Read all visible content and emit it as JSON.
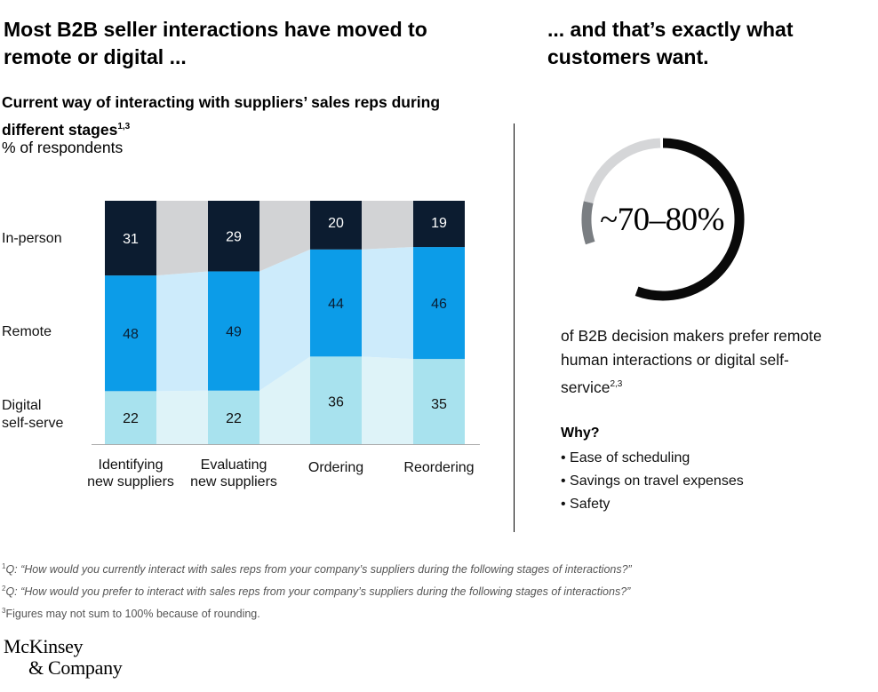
{
  "headline_left": "Most B2B seller interactions have moved to remote or digital ...",
  "headline_right": "... and that’s exactly what customers want.",
  "chart_title": "Current way of interacting with suppliers’ sales reps during different stages",
  "chart_title_footnote": "1,3",
  "chart_unit": "% of respondents",
  "row_labels": {
    "in_person": "In-person",
    "remote": "Remote",
    "digital_line1": "Digital",
    "digital_line2": "self-serve"
  },
  "category_labels": [
    {
      "line1": "Identifying",
      "line2": "new suppliers"
    },
    {
      "line1": "Evaluating",
      "line2": "new suppliers"
    },
    {
      "line1": "Ordering",
      "line2": ""
    },
    {
      "line1": "Reordering",
      "line2": ""
    }
  ],
  "chart_data": {
    "type": "bar",
    "stacked": true,
    "normalized_to_percent": true,
    "categories": [
      "Identifying new suppliers",
      "Evaluating new suppliers",
      "Ordering",
      "Reordering"
    ],
    "series": [
      {
        "name": "Digital self-serve",
        "values": [
          22,
          22,
          36,
          35
        ],
        "color": "#a8e2ee"
      },
      {
        "name": "Remote",
        "values": [
          48,
          49,
          44,
          46
        ],
        "color": "#0c9ce8"
      },
      {
        "name": "In-person",
        "values": [
          31,
          29,
          20,
          19
        ],
        "color": "#0c1c30"
      }
    ],
    "connector_colors": {
      "Digital self-serve": "#def3f8",
      "Remote": "#cdebfb",
      "In-person": "#d2d3d5"
    },
    "ylim": [
      0,
      100
    ]
  },
  "stat": {
    "value": "~70–80%",
    "description": "of B2B decision makers prefer remote human interactions or digital self-service",
    "footnote": "2,3",
    "donut_segments": [
      {
        "label": "dark",
        "color": "#0a0a0a"
      },
      {
        "label": "gray",
        "color": "#7a7e82"
      },
      {
        "label": "light",
        "color": "#d5d6d8"
      }
    ]
  },
  "why": {
    "title": "Why?",
    "reasons": [
      "Ease of scheduling",
      "Savings on travel expenses",
      "Safety"
    ]
  },
  "footnotes": [
    {
      "mark": "1",
      "text": "Q: “How would you currently interact with sales reps from your company’s suppliers during the following stages of interactions?”",
      "italic": true
    },
    {
      "mark": "2",
      "text": "Q: “How would you prefer to interact with sales reps from your company’s suppliers during the following stages of interactions?”",
      "italic": true
    },
    {
      "mark": "3",
      "text": "Figures may not sum to 100% because of rounding.",
      "italic": false
    }
  ],
  "source_logo": {
    "line1": "McKinsey",
    "line2": "& Company"
  }
}
